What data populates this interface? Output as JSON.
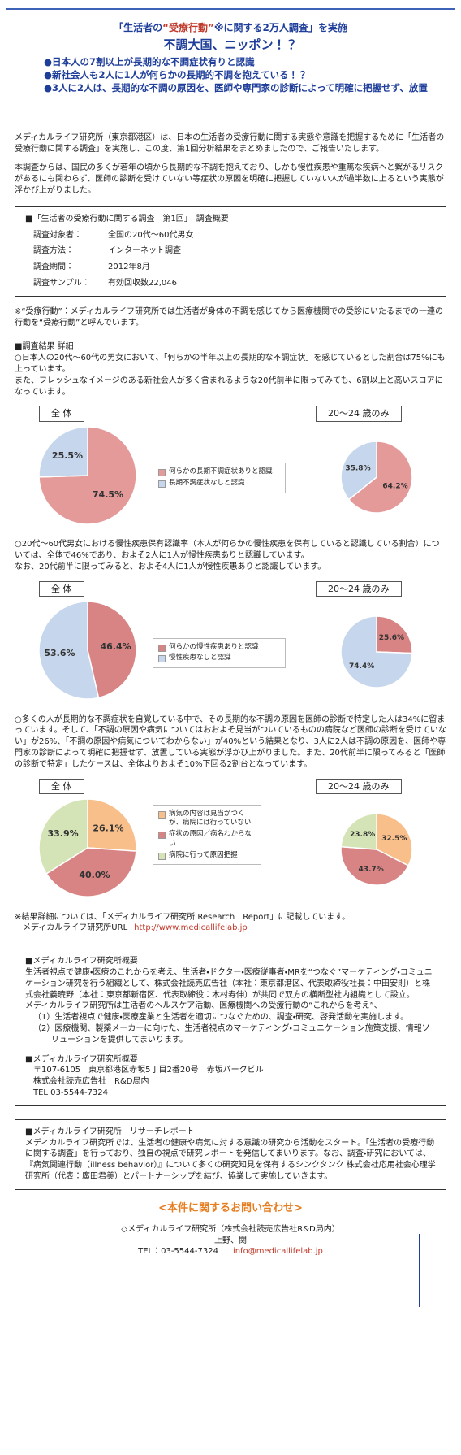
{
  "header": {
    "lead_pre": "「生活者の",
    "lead_em": "“受療行動”",
    "lead_post": "※に関する2万人調査」を実施",
    "title": "不調大国、ニッポン！？",
    "bullets": [
      "日本人の7割以上が長期的な不調症状有りと認識",
      "新社会人も2人に1人が何らかの長期的不調を抱えている！？",
      "3人に2人は、長期的な不調の原因を、医師や専門家の診断によって明確に把握せず、放置"
    ]
  },
  "intro": [
    "メディカルライフ研究所（東京都港区）は、日本の生活者の受療行動に関する実態や意識を把握するために「生活者の受療行動に関する調査」を実施し、この度、第1回分析結果をまとめましたので、ご報告いたします。",
    "本調査からは、国民の多くが若年の頃から長期的な不調を抱えており、しかも慢性疾患や重篤な疾病へと繋がるリスクがあるにも関わらず、医師の診断を受けていない等症状の原因を明確に把握していない人が過半数に上るという実態が浮かび上がりました。"
  ],
  "survey": {
    "title": "■「生活者の受療行動に関する調査　第1回」　調査概要",
    "rows": [
      [
        "調査対象者：",
        "全国の20代～60代男女"
      ],
      [
        "調査方法：",
        "インターネット調査"
      ],
      [
        "調査期間：",
        "2012年8月"
      ],
      [
        "調査サンプル：",
        "有効回収数22,046"
      ]
    ]
  },
  "note": "※“受療行動”：メディカルライフ研究所では生活者が身体の不調を感じてから医療機関での受診にいたるまでの一連の行動を“受療行動”と呼んでいます。",
  "results": {
    "heading": "■調査結果 詳細",
    "paragraphs": [
      [
        "○日本人の20代～60代の男女において、「何らかの半年以上の長期的な不調症状」を感じているとした割合は75%にも上っています。",
        "また、フレッシュなイメージのある新社会人が多く含まれるような20代前半に限ってみても、6割以上と高いスコアになっています。"
      ],
      [
        "○20代～60代男女における慢性疾患保有認識率（本人が何らかの慢性疾患を保有していると認識している割合）については、全体で46%であり、およそ2人に1人が慢性疾患ありと認識しています。",
        "なお、20代前半に限ってみると、およそ4人に1人が慢性疾患ありと認識しています。"
      ],
      [
        "○多くの人が長期的な不調症状を自覚している中で、その長期的な不調の原因を医師の診断で特定した人は34%に留まっています。そして、「不調の原因や病気についてはおおよそ見当がついているものの病院など医師の診断を受けていない」が26%、「不調の原因や病気についてわからない」が40%という結果となり、3人に2人は不調の原因を、医師や専門家の診断によって明確に把握せず、放置している実態が浮かび上がりました。また、20代前半に限ってみると「医師の診断で特定」したケースは、全体よりおよそ10%下回る2割台となっています。"
      ]
    ]
  },
  "chart_data": [
    {
      "type": "pie",
      "title": "全 体",
      "categories": [
        "何らかの長期不調症状ありと認識",
        "長期不調症状なしと認識"
      ],
      "values": [
        74.5,
        25.5
      ],
      "value_labels": [
        "74.5%",
        "25.5%"
      ],
      "colors": [
        "#e59a9a",
        "#c6d6ec"
      ]
    },
    {
      "type": "pie",
      "title": "20～24 歳のみ",
      "values": [
        64.2,
        35.8
      ],
      "value_labels": [
        "64.2%",
        "35.8%"
      ],
      "colors": [
        "#e59a9a",
        "#c6d6ec"
      ]
    },
    {
      "type": "pie",
      "title": "全 体",
      "categories": [
        "何らかの慢性疾患ありと認識",
        "慢性疾患なしと認識"
      ],
      "values": [
        46.4,
        53.6
      ],
      "value_labels": [
        "46.4%",
        "53.6%"
      ],
      "colors": [
        "#d98484",
        "#c6d6ec"
      ]
    },
    {
      "type": "pie",
      "title": "20～24 歳のみ",
      "values": [
        25.6,
        74.4
      ],
      "value_labels": [
        "25.6%",
        "74.4%"
      ],
      "colors": [
        "#d98484",
        "#c6d6ec"
      ]
    },
    {
      "type": "pie",
      "title": "全 体",
      "categories": [
        "病気の内容は見当がつくが、病院には行っていない",
        "症状の原因／病名わからない",
        "病院に行って原因把握"
      ],
      "values": [
        26.1,
        40.0,
        33.9
      ],
      "value_labels": [
        "26.1%",
        "40.0%",
        "33.9%"
      ],
      "colors": [
        "#f8bf8a",
        "#d98484",
        "#d5e4b6"
      ]
    },
    {
      "type": "pie",
      "title": "20～24 歳のみ",
      "values": [
        32.5,
        43.7,
        23.8
      ],
      "value_labels": [
        "32.5%",
        "43.7%",
        "23.8%"
      ],
      "colors": [
        "#f8bf8a",
        "#d98484",
        "#d5e4b6"
      ]
    }
  ],
  "links": {
    "report_note": "※結果詳細については、「メディカルライフ研究所 Research　Report」に記載しています。",
    "url_label": "メディカルライフ研究所URL",
    "url": "http://www.medicallifelab.jp"
  },
  "about": {
    "title": "■メディカルライフ研究所概要",
    "body": "生活者視点で健康・医療のこれからを考え、生活者・ドクター・医療従事者・MRを“つなぐ”マーケティング・コミュニケーション研究を行う組織として、株式会社読売広告社（本社：東京都港区、代表取締役社長：中田安則）と株式会社義暁野（本社：東京都新宿区、代表取締役：木村寿伸）が共同で双方の横断型社内組織として設立。",
    "lead": "メディカルライフ研究所は生活者のヘルスケア活動、医療機関への受療行動の“これからを考え”、",
    "items": [
      "（1）生活者視点で健康・医療産業と生活者を適切につなぐための、調査・研究、啓発活動を実施します。",
      "（2）医療機関、製薬メーカーに向けた、生活者視点のマーケティング・コミュニケーション施策支援、情報ソリューションを提供してまいります。"
    ],
    "title2": "■メディカルライフ研究所概要",
    "address": [
      "〒107-6105　東京都港区赤坂5丁目2番20号　赤坂パークビル",
      "株式会社読売広告社　R&D局内",
      "TEL 03-5544-7324"
    ]
  },
  "report": {
    "title": "■メディカルライフ研究所　リサーチレポート",
    "body": "メディカルライフ研究所では、生活者の健康や病気に対する意識の研究から活動をスタート。「生活者の受療行動に関する調査」を行っており、独自の視点で研究レポートを発信してまいります。なお、調査・研究においては、『病気関連行動（illness behavior）』について多くの研究知見を保有するシンクタンク 株式会社応用社会心理学研究所（代表：廣田君美）とパートナーシップを結び、協業して実施していきます。"
  },
  "contact": {
    "title": "<本件に関するお問い合わせ>",
    "org": "◇メディカルライフ研究所（株式会社読売広告社R&D局内）",
    "names": "上野、関",
    "tel": "TEL：03-5544-7324",
    "email": "info@medicallifelab.jp"
  }
}
